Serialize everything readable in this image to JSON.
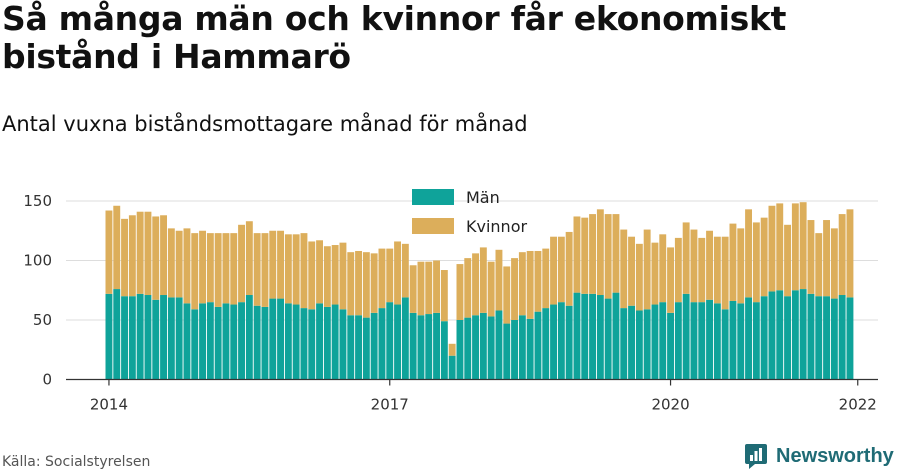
{
  "title": "Så många män och kvinnor får ekonomiskt\nbistånd i Hammarö",
  "subtitle": "Antal vuxna biståndsmottagare månad för månad",
  "source": "Källa: Socialstyrelsen",
  "brand": "Newsworthy",
  "chart_data": {
    "type": "bar",
    "stacked": true,
    "x_start": "2014-01",
    "x_ticks": [
      "2014",
      "2017",
      "2020",
      "2022"
    ],
    "y_ticks": [
      "0",
      "50",
      "100",
      "150"
    ],
    "ylim": [
      0,
      160
    ],
    "grid": true,
    "legend_position": "top-center",
    "colors": {
      "Män": "#0fa39a",
      "Kvinnor": "#dcae5b"
    },
    "series": [
      {
        "name": "Män",
        "values": [
          72,
          76,
          70,
          70,
          72,
          71,
          67,
          71,
          69,
          69,
          64,
          59,
          64,
          65,
          61,
          64,
          63,
          65,
          71,
          62,
          61,
          68,
          68,
          64,
          63,
          60,
          59,
          64,
          61,
          63,
          59,
          54,
          54,
          52,
          56,
          60,
          65,
          63,
          69,
          56,
          54,
          55,
          56,
          49,
          20,
          50,
          52,
          54,
          56,
          53,
          58,
          47,
          50,
          54,
          51,
          57,
          60,
          63,
          65,
          62,
          73,
          72,
          72,
          71,
          68,
          73,
          60,
          62,
          58,
          59,
          63,
          65,
          56,
          65,
          72,
          65,
          65,
          67,
          64,
          59,
          66,
          64,
          69,
          65,
          70,
          74,
          75,
          70,
          75,
          76,
          72,
          70,
          70,
          68,
          71,
          69
        ]
      },
      {
        "name": "Kvinnor",
        "values": [
          70,
          70,
          65,
          68,
          69,
          70,
          70,
          67,
          58,
          56,
          63,
          64,
          61,
          58,
          62,
          59,
          60,
          65,
          62,
          61,
          62,
          57,
          57,
          58,
          59,
          63,
          57,
          53,
          51,
          50,
          56,
          53,
          54,
          55,
          50,
          50,
          45,
          53,
          45,
          40,
          45,
          44,
          44,
          43,
          10,
          47,
          50,
          52,
          55,
          46,
          51,
          48,
          52,
          53,
          57,
          51,
          50,
          57,
          55,
          62,
          64,
          64,
          67,
          72,
          71,
          66,
          66,
          58,
          56,
          67,
          52,
          57,
          55,
          54,
          60,
          61,
          54,
          58,
          56,
          61,
          65,
          63,
          74,
          67,
          66,
          72,
          73,
          60,
          73,
          73,
          62,
          53,
          64,
          59,
          68,
          74
        ]
      }
    ]
  }
}
